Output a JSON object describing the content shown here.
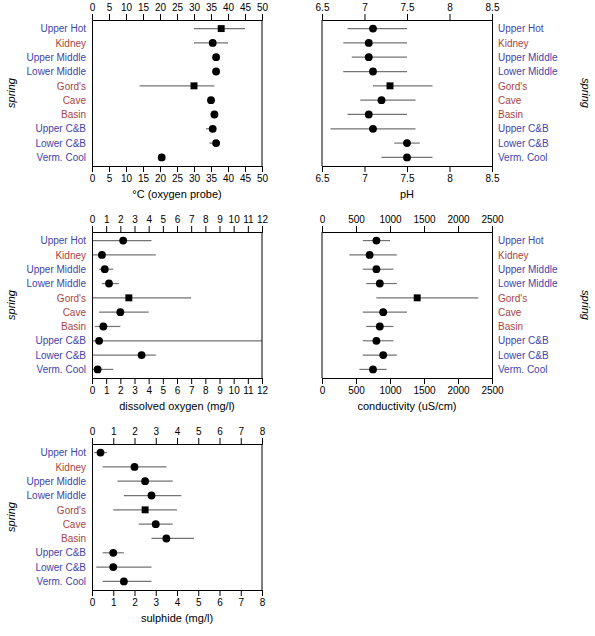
{
  "chart_data": [
    {
      "type": "dot",
      "x_label": "°C (oxygen probe)",
      "y_label": "spring",
      "categories": [
        "Upper Hot",
        "Kidney",
        "Upper Middle",
        "Lower Middle",
        "Gord's",
        "Cave",
        "Basin",
        "Upper C&B",
        "Lower C&B",
        "Verm. Cool"
      ],
      "category_colors": [
        "#4444aa",
        "#aa4444",
        "#4444aa",
        "#4444aa",
        "#aa4444",
        "#aa4444",
        "#aa4444",
        "#4444aa",
        "#4444aa",
        "#4444aa"
      ],
      "series": [
        {
          "marker": "circle",
          "color": "#000000",
          "values": [
            null,
            35.5,
            36.5,
            36.5,
            null,
            35.0,
            36.0,
            35.5,
            36.5,
            20.5
          ],
          "lo": [
            null,
            30.0,
            35.5,
            35.5,
            null,
            34.5,
            35.0,
            33.5,
            34.5,
            20.0
          ],
          "hi": [
            null,
            40.0,
            37.0,
            37.0,
            null,
            36.0,
            36.5,
            36.5,
            37.5,
            21.0
          ]
        },
        {
          "marker": "square",
          "color": "#000000",
          "values": [
            38.0,
            null,
            null,
            null,
            30.0,
            null,
            null,
            null,
            null,
            null
          ],
          "lo": [
            30.0,
            null,
            null,
            null,
            14.0,
            null,
            null,
            null,
            null,
            null
          ],
          "hi": [
            45.0,
            null,
            null,
            null,
            36.0,
            null,
            null,
            null,
            null,
            null
          ]
        }
      ],
      "xlim": [
        0,
        50
      ],
      "xticks": [
        0,
        5,
        10,
        15,
        20,
        25,
        30,
        35,
        40,
        45,
        50
      ]
    },
    {
      "type": "dot",
      "x_label": "pH",
      "y_label": "spring",
      "categories": [
        "Upper Hot",
        "Kidney",
        "Upper Middle",
        "Lower Middle",
        "Gord's",
        "Cave",
        "Basin",
        "Upper C&B",
        "Lower C&B",
        "Verm. Cool"
      ],
      "category_colors": [
        "#4444aa",
        "#aa4444",
        "#4444aa",
        "#4444aa",
        "#aa4444",
        "#aa4444",
        "#aa4444",
        "#4444aa",
        "#4444aa",
        "#4444aa"
      ],
      "series": [
        {
          "marker": "circle",
          "color": "#000000",
          "values": [
            7.1,
            7.05,
            7.05,
            7.1,
            null,
            7.2,
            7.05,
            7.1,
            7.5,
            7.5
          ],
          "lo": [
            6.8,
            6.75,
            6.85,
            6.75,
            null,
            6.95,
            6.8,
            6.6,
            7.35,
            7.2
          ],
          "hi": [
            7.5,
            7.5,
            7.5,
            7.5,
            null,
            7.6,
            7.5,
            7.6,
            7.65,
            7.8
          ]
        },
        {
          "marker": "square",
          "color": "#000000",
          "values": [
            null,
            null,
            null,
            null,
            7.3,
            null,
            null,
            null,
            null,
            null
          ],
          "lo": [
            null,
            null,
            null,
            null,
            7.1,
            null,
            null,
            null,
            null,
            null
          ],
          "hi": [
            null,
            null,
            null,
            null,
            7.8,
            null,
            null,
            null,
            null,
            null
          ]
        }
      ],
      "xlim": [
        6.5,
        8.5
      ],
      "xticks": [
        6.5,
        7,
        7.5,
        8,
        8.5
      ]
    },
    {
      "type": "dot",
      "x_label": "dissolved oxygen (mg/l)",
      "y_label": "spring",
      "categories": [
        "Upper Hot",
        "Kidney",
        "Upper Middle",
        "Lower Middle",
        "Gord's",
        "Cave",
        "Basin",
        "Upper C&B",
        "Lower C&B",
        "Verm. Cool"
      ],
      "category_colors": [
        "#4444aa",
        "#aa4444",
        "#4444aa",
        "#4444aa",
        "#aa4444",
        "#aa4444",
        "#aa4444",
        "#4444aa",
        "#4444aa",
        "#4444aa"
      ],
      "series": [
        {
          "marker": "circle",
          "color": "#000000",
          "values": [
            2.2,
            0.7,
            0.9,
            1.2,
            null,
            2.0,
            0.8,
            0.5,
            3.5,
            0.4
          ],
          "lo": [
            0.05,
            0.05,
            0.5,
            0.7,
            null,
            0.5,
            0.2,
            0.05,
            0.05,
            0.05
          ],
          "hi": [
            4.2,
            4.5,
            1.5,
            1.9,
            null,
            4.0,
            2.0,
            12.0,
            4.5,
            1.5
          ]
        },
        {
          "marker": "square",
          "color": "#000000",
          "values": [
            null,
            null,
            null,
            null,
            2.6,
            null,
            null,
            null,
            null,
            null
          ],
          "lo": [
            null,
            null,
            null,
            null,
            0.05,
            null,
            null,
            null,
            null,
            null
          ],
          "hi": [
            null,
            null,
            null,
            null,
            7.0,
            null,
            null,
            null,
            null,
            null
          ]
        }
      ],
      "xlim": [
        0,
        12
      ],
      "xticks": [
        0,
        1,
        2,
        3,
        4,
        5,
        6,
        7,
        8,
        9,
        10,
        11,
        12
      ]
    },
    {
      "type": "dot",
      "x_label": "conductivity (uS/cm)",
      "y_label": "spring",
      "categories": [
        "Upper Hot",
        "Kidney",
        "Upper Middle",
        "Lower Middle",
        "Gord's",
        "Cave",
        "Basin",
        "Upper C&B",
        "Lower C&B",
        "Verm. Cool"
      ],
      "category_colors": [
        "#4444aa",
        "#aa4444",
        "#4444aa",
        "#4444aa",
        "#aa4444",
        "#aa4444",
        "#aa4444",
        "#4444aa",
        "#4444aa",
        "#4444aa"
      ],
      "series": [
        {
          "marker": "circle",
          "color": "#000000",
          "values": [
            800,
            700,
            800,
            850,
            null,
            900,
            850,
            800,
            900,
            750
          ],
          "lo": [
            600,
            400,
            600,
            650,
            null,
            600,
            650,
            600,
            600,
            550
          ],
          "hi": [
            1000,
            1100,
            1050,
            1100,
            null,
            1250,
            1050,
            1050,
            1100,
            950
          ]
        },
        {
          "marker": "square",
          "color": "#000000",
          "values": [
            null,
            null,
            null,
            null,
            1400,
            null,
            null,
            null,
            null,
            null
          ],
          "lo": [
            null,
            null,
            null,
            null,
            800,
            null,
            null,
            null,
            null,
            null
          ],
          "hi": [
            null,
            null,
            null,
            null,
            2300,
            null,
            null,
            null,
            null,
            null
          ]
        }
      ],
      "xlim": [
        0,
        2500
      ],
      "xticks": [
        0,
        500,
        1000,
        1500,
        2000,
        2500
      ]
    },
    {
      "type": "dot",
      "x_label": "sulphide (mg/l)",
      "y_label": "spring",
      "categories": [
        "Upper Hot",
        "Kidney",
        "Upper Middle",
        "Lower Middle",
        "Gord's",
        "Cave",
        "Basin",
        "Upper C&B",
        "Lower C&B",
        "Verm. Cool"
      ],
      "category_colors": [
        "#4444aa",
        "#aa4444",
        "#4444aa",
        "#4444aa",
        "#aa4444",
        "#aa4444",
        "#aa4444",
        "#4444aa",
        "#4444aa",
        "#4444aa"
      ],
      "series": [
        {
          "marker": "circle",
          "color": "#000000",
          "values": [
            0.4,
            2.0,
            2.5,
            2.8,
            null,
            3.0,
            3.5,
            1.0,
            1.0,
            1.5
          ],
          "lo": [
            0.1,
            0.5,
            1.2,
            1.5,
            null,
            2.2,
            2.8,
            0.5,
            0.2,
            0.5
          ],
          "hi": [
            0.7,
            3.5,
            3.8,
            4.2,
            null,
            3.8,
            4.8,
            1.5,
            2.8,
            2.8
          ]
        },
        {
          "marker": "square",
          "color": "#000000",
          "values": [
            null,
            null,
            null,
            null,
            2.5,
            null,
            null,
            null,
            null,
            null
          ],
          "lo": [
            null,
            null,
            null,
            null,
            1.0,
            null,
            null,
            null,
            null,
            null
          ],
          "hi": [
            null,
            null,
            null,
            null,
            4.0,
            null,
            null,
            null,
            null,
            null
          ]
        }
      ],
      "xlim": [
        0,
        8
      ],
      "xticks": [
        0,
        1,
        2,
        3,
        4,
        5,
        6,
        7,
        8
      ]
    }
  ]
}
